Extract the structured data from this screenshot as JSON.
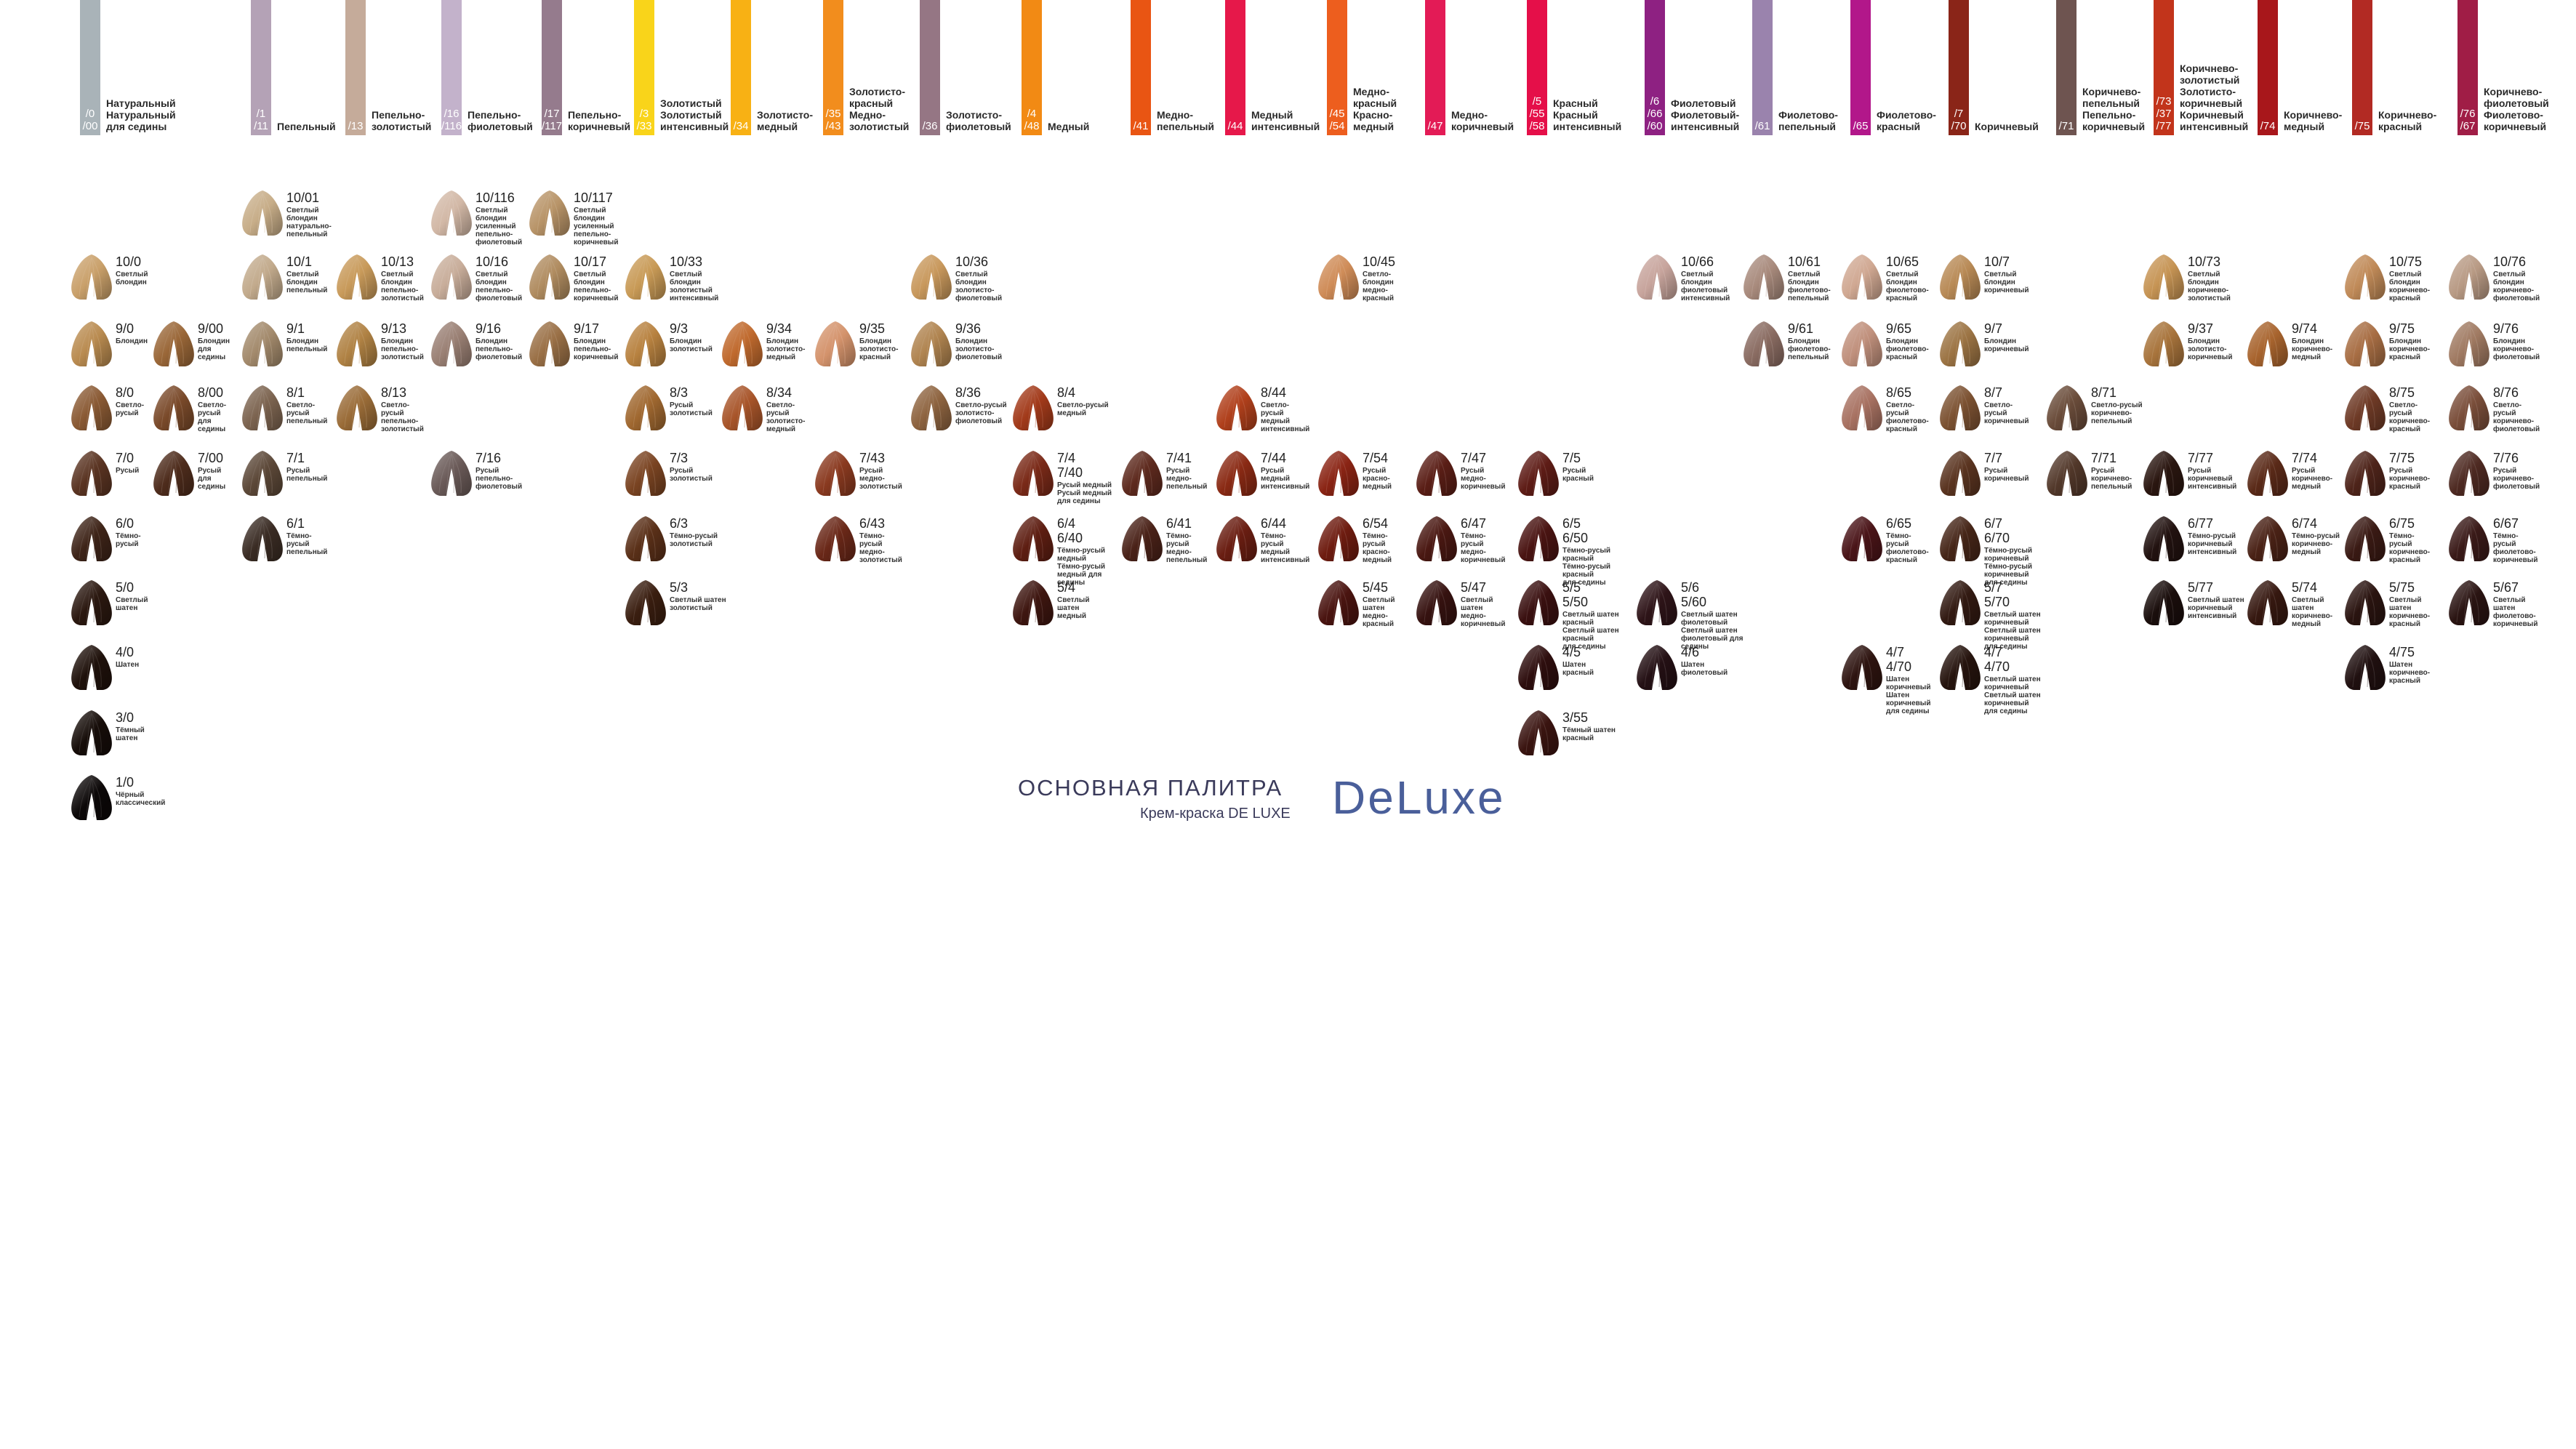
{
  "brand": {
    "title": "ОСНОВНАЯ ПАЛИТРА",
    "subtitle": "Крем-краска DE LUXE",
    "logo": "DeLuxe"
  },
  "columns": [
    {
      "codes": "/0\n/00",
      "name": "Натуральный\nНатуральный для седины",
      "color": "#a9b3b8"
    },
    {
      "codes": "/1\n/11",
      "name": "Пепельный",
      "color": "#b4a2b6"
    },
    {
      "codes": "/13",
      "name": "Пепельно-\nзолотистый",
      "color": "#c5ab9a"
    },
    {
      "codes": "/16\n/116",
      "name": "Пепельно-\nфиолетовый",
      "color": "#c3b2cb"
    },
    {
      "codes": "/17\n/117",
      "name": "Пепельно-\nкоричневый",
      "color": "#957b8d"
    },
    {
      "codes": "/3\n/33",
      "name": "Золотистый\nЗолотистый\nинтенсивный",
      "color": "#f9d41a"
    },
    {
      "codes": "/34",
      "name": "Золотисто-\nмедный",
      "color": "#f8b114"
    },
    {
      "codes": "/35\n/43",
      "name": "Золотисто-\nкрасный\nМедно-\nзолотистый",
      "color": "#f28d1d"
    },
    {
      "codes": "/36",
      "name": "Золотисто-\nфиолетовый",
      "color": "#957684"
    },
    {
      "codes": "/4\n/48",
      "name": "Медный",
      "color": "#f28a14"
    },
    {
      "codes": "/41",
      "name": "Медно-\nпепельный",
      "color": "#e95513"
    },
    {
      "codes": "/44",
      "name": "Медный\nинтенсивный",
      "color": "#e6184a"
    },
    {
      "codes": "/45\n/54",
      "name": "Медно-\nкрасный\nКрасно-\nмедный",
      "color": "#ed5e1e"
    },
    {
      "codes": "/47",
      "name": "Медно-\nкоричневый",
      "color": "#e31b56"
    },
    {
      "codes": "/5\n/55\n/58",
      "name": "Красный\nКрасный\nинтенсивный",
      "color": "#e50f49"
    },
    {
      "codes": "/6\n/66\n/60",
      "name": "Фиолетовый\nФиолетовый-\nинтенсивный",
      "color": "#8e2182"
    },
    {
      "codes": "/61",
      "name": "Фиолетово-\nпепельный",
      "color": "#9a83ad"
    },
    {
      "codes": "/65",
      "name": "Фиолетово-\nкрасный",
      "color": "#b2178a"
    },
    {
      "codes": "/7\n/70",
      "name": "Коричневый",
      "color": "#8a2518"
    },
    {
      "codes": "/71",
      "name": "Коричнево-\nпепельный\nПепельно-\nкоричневый",
      "color": "#6e5450"
    },
    {
      "codes": "/73\n/37\n/77",
      "name": "Коричнево-\nзолотистый\nЗолотисто-\nкоричневый\nКоричневый\nинтенсивный",
      "color": "#c2341b"
    },
    {
      "codes": "/74",
      "name": "Коричнево-\nмедный",
      "color": "#a8171b"
    },
    {
      "codes": "/75",
      "name": "Коричнево-\nкрасный",
      "color": "#b22a23"
    },
    {
      "codes": "/76\n/67",
      "name": "Коричнево-\nфиолетовый\nФиолетово-\nкоричневый",
      "color": "#a01d46"
    }
  ],
  "swatches": [
    {
      "code": "10/0",
      "desc": "Светлый\nблондин",
      "color": "#c9a06a"
    },
    {
      "code": "9/0",
      "desc": "Блондин",
      "color": "#b98b50"
    },
    {
      "code": "8/0",
      "desc": "Светло-\nрусый",
      "color": "#8a5a34"
    },
    {
      "code": "7/0",
      "desc": "Русый",
      "color": "#5a3422"
    },
    {
      "code": "6/0",
      "desc": "Тёмно-\nрусый",
      "color": "#3e2418"
    },
    {
      "code": "5/0",
      "desc": "Светлый\nшатен",
      "color": "#2b1810"
    },
    {
      "code": "4/0",
      "desc": "Шатен",
      "color": "#1f110b"
    },
    {
      "code": "3/0",
      "desc": "Тёмный\nшатен",
      "color": "#160d09"
    },
    {
      "code": "1/0",
      "desc": "Чёрный\nклассический",
      "color": "#0c0808"
    },
    {
      "code": "9/00",
      "desc": "Блондин\nдля\nседины",
      "color": "#9a6738"
    },
    {
      "code": "8/00",
      "desc": "Светло-\nрусый\nдля\nседины",
      "color": "#7a4a2a"
    },
    {
      "code": "7/00",
      "desc": "Русый\nдля\nседины",
      "color": "#4e2c1c"
    },
    {
      "code": "10/01",
      "desc": "Светлый\nблондин\nнатурально-\nпепельный",
      "color": "#c7ad88"
    },
    {
      "code": "10/1",
      "desc": "Светлый\nблондин\nпепельный",
      "color": "#c2aa8c"
    },
    {
      "code": "9/1",
      "desc": "Блондин\nпепельный",
      "color": "#a38a6c"
    },
    {
      "code": "8/1",
      "desc": "Светло-\nрусый\nпепельный",
      "color": "#7c6450"
    },
    {
      "code": "7/1",
      "desc": "Русый\nпепельный",
      "color": "#5c4838"
    },
    {
      "code": "6/1",
      "desc": "Тёмно-\nрусый\nпепельный",
      "color": "#3a2c24"
    },
    {
      "code": "10/13",
      "desc": "Светлый\nблондин\nпепельно-\nзолотистый",
      "color": "#c89a5a"
    },
    {
      "code": "9/13",
      "desc": "Блондин\nпепельно-\nзолотистый",
      "color": "#b08244"
    },
    {
      "code": "8/13",
      "desc": "Светло-\nрусый\nпепельно-\nзолотистый",
      "color": "#9a6c38"
    },
    {
      "code": "10/116",
      "desc": "Светлый\nблондин\nусиленный\nпепельно-\nфиолетовый",
      "color": "#d2b8a6"
    },
    {
      "code": "10/16",
      "desc": "Светлый\nблондин\nпепельно-\nфиолетовый",
      "color": "#c8ad9a"
    },
    {
      "code": "9/16",
      "desc": "Блондин\nпепельно-\nфиолетовый",
      "color": "#9a8074"
    },
    {
      "code": "7/16",
      "desc": "Русый\nпепельно-\nфиолетовый",
      "color": "#6a5a58"
    },
    {
      "code": "10/117",
      "desc": "Светлый\nблондин\nусиленный\nпепельно-\nкоричневый",
      "color": "#b89468"
    },
    {
      "code": "10/17",
      "desc": "Светлый\nблондин\nпепельно-\nкоричневый",
      "color": "#b08c60"
    },
    {
      "code": "9/17",
      "desc": "Блондин\nпепельно-\nкоричневый",
      "color": "#9a7046"
    },
    {
      "code": "10/33",
      "desc": "Светлый\nблондин\nзолотистый\nинтенсивный",
      "color": "#c89a56"
    },
    {
      "code": "9/3",
      "desc": "Блондин\nзолотистый",
      "color": "#b88240"
    },
    {
      "code": "8/3",
      "desc": "Русый\nзолотистый",
      "color": "#a06830"
    },
    {
      "code": "7/3",
      "desc": "Русый\nзолотистый",
      "color": "#7a4422"
    },
    {
      "code": "6/3",
      "desc": "Тёмно-русый\nзолотистый",
      "color": "#5a3018"
    },
    {
      "code": "5/3",
      "desc": "Светлый шатен\nзолотистый",
      "color": "#3a1e10"
    },
    {
      "code": "9/34",
      "desc": "Блондин\nзолотисто-\nмедный",
      "color": "#c06a2e"
    },
    {
      "code": "8/34",
      "desc": "Светло-\nрусый\nзолотисто-\nмедный",
      "color": "#a8552a"
    },
    {
      "code": "9/35",
      "desc": "Блондин\nзолотисто-\nкрасный",
      "color": "#d4936c"
    },
    {
      "code": "7/43",
      "desc": "Русый\nмедно-\nзолотистый",
      "color": "#8a3a20"
    },
    {
      "code": "6/43",
      "desc": "Тёмно-\nрусый\nмедно-\nзолотистый",
      "color": "#6a2818"
    },
    {
      "code": "10/36",
      "desc": "Светлый\nблондин\nзолотисто-\nфиолетовый",
      "color": "#c8985c"
    },
    {
      "code": "9/36",
      "desc": "Блондин\nзолотисто-\nфиолетовый",
      "color": "#b08450"
    },
    {
      "code": "8/36",
      "desc": "Светло-русый\nзолотисто-\nфиолетовый",
      "color": "#8e6440"
    },
    {
      "code": "8/4",
      "desc": "Светло-русый\nмедный",
      "color": "#a23a1a"
    },
    {
      "code": "7/4\n7/40",
      "desc": "Русый медный\nРусый медный для седины",
      "color": "#7a2a18"
    },
    {
      "code": "6/4\n6/40",
      "desc": "Тёмно-русый\nмедный\nТёмно-русый медный для седины",
      "color": "#5e1e12"
    },
    {
      "code": "5/4",
      "desc": "Светлый\nшатен\nмедный",
      "color": "#3e1610"
    },
    {
      "code": "7/41",
      "desc": "Русый\nмедно-\nпепельный",
      "color": "#5e2a1e"
    },
    {
      "code": "6/41",
      "desc": "Тёмно-\nрусый\nмедно-\nпепельный",
      "color": "#4a2218"
    },
    {
      "code": "8/44",
      "desc": "Светло-\nрусый\nмедный\nинтенсивный",
      "color": "#b0401c"
    },
    {
      "code": "7/44",
      "desc": "Русый\nмедный\nинтенсивный",
      "color": "#8a2a14"
    },
    {
      "code": "6/44",
      "desc": "Тёмно-\nрусый\nмедный\nинтенсивный",
      "color": "#6a1e12"
    },
    {
      "code": "10/45",
      "desc": "Светло-\nблондин\nмедно-\nкрасный",
      "color": "#cf8c58"
    },
    {
      "code": "7/54",
      "desc": "Русый\nкрасно-\nмедный",
      "color": "#8a2414"
    },
    {
      "code": "6/54",
      "desc": "Тёмно-\nрусый\nкрасно-\nмедный",
      "color": "#6e1c10"
    },
    {
      "code": "5/45",
      "desc": "Светлый\nшатен\nмедно-\nкрасный",
      "color": "#4a1410"
    },
    {
      "code": "7/47",
      "desc": "Русый\nмедно-\nкоричневый",
      "color": "#5a1e16"
    },
    {
      "code": "6/47",
      "desc": "Тёмно-\nрусый\nмедно-\nкоричневый",
      "color": "#4a1812"
    },
    {
      "code": "5/47",
      "desc": "Светлый\nшатен\nмедно-\nкоричневый",
      "color": "#361210"
    },
    {
      "code": "7/5",
      "desc": "Русый\nкрасный",
      "color": "#5e1c16"
    },
    {
      "code": "6/5\n6/50",
      "desc": "Тёмно-русый\nкрасный\nТёмно-русый\nкрасный\nдля седины",
      "color": "#4a1412"
    },
    {
      "code": "5/5\n5/50",
      "desc": "Светлый шатен\nкрасный\nСветлый шатен\nкрасный\nдля седины",
      "color": "#3a1010"
    },
    {
      "code": "4/5",
      "desc": "Шатен\nкрасный",
      "color": "#2e0e0e"
    },
    {
      "code": "3/55",
      "desc": "Тёмный шатен\nкрасный",
      "color": "#3a1410"
    },
    {
      "code": "10/66",
      "desc": "Светлый\nблондин\nфиолетовый\nинтенсивный",
      "color": "#c7a49c"
    },
    {
      "code": "5/6\n5/60",
      "desc": "Светлый шатен\nфиолетовый\nСветлый шатен\nфиолетовый для седины",
      "color": "#2e1418"
    },
    {
      "code": "4/6",
      "desc": "Шатен\nфиолетовый",
      "color": "#241014"
    },
    {
      "code": "10/61",
      "desc": "Светлый\nблондин\nфиолетово-\nпепельный",
      "color": "#a88a7c"
    },
    {
      "code": "9/61",
      "desc": "Блондин\nфиолетово-\nпепельный",
      "color": "#8a6c62"
    },
    {
      "code": "10/65",
      "desc": "Светлый\nблондин\nфиолетово-\nкрасный",
      "color": "#d0a892"
    },
    {
      "code": "9/65",
      "desc": "Блондин\nфиолетово-\nкрасный",
      "color": "#c0907c"
    },
    {
      "code": "8/65",
      "desc": "Светло-\nрусый\nфиолетово-\nкрасный",
      "color": "#a87262"
    },
    {
      "code": "6/65",
      "desc": "Тёмно-\nрусый\nфиолетово-\nкрасный",
      "color": "#4a1418"
    },
    {
      "code": "4/7\n4/70",
      "desc": "Шатен\nкоричневый\nШатен\nкоричневый\nдля седины",
      "color": "#2e1410"
    },
    {
      "code": "10/7",
      "desc": "Светлый\nблондин\nкоричневый",
      "color": "#b88a56"
    },
    {
      "code": "9/7",
      "desc": "Блондин\nкоричневый",
      "color": "#9c7444"
    },
    {
      "code": "8/7",
      "desc": "Светло-\nрусый\nкоричневый",
      "color": "#7c5232"
    },
    {
      "code": "7/7",
      "desc": "Русый\nкоричневый",
      "color": "#5a3420"
    },
    {
      "code": "6/7\n6/70",
      "desc": "Тёмно-русый\nкоричневый\nТёмно-русый\nкоричневый\nдля седины",
      "color": "#462618"
    },
    {
      "code": "5/7\n5/70",
      "desc": "Светлый шатен\nкоричневый\nСветлый шатен\nкоричневый\nдля седины",
      "color": "#321a12"
    },
    {
      "code": "4/7\n4/70",
      "desc": "Светлый шатен\nкоричневый\nСветлый шатен\nкоричневый\nдля седины",
      "color": "#26140e"
    },
    {
      "code": "8/71",
      "desc": "Светло-русый\nкоричнево-\nпепельный",
      "color": "#6a4c3a"
    },
    {
      "code": "7/71",
      "desc": "Русый\nкоричнево-\nпепельный",
      "color": "#52382a"
    },
    {
      "code": "10/73",
      "desc": "Светлый\nблондин\nкоричнево-\nзолотистый",
      "color": "#c69454"
    },
    {
      "code": "9/37",
      "desc": "Блондин\nзолотисто-\nкоричневый",
      "color": "#a8743c"
    },
    {
      "code": "7/77",
      "desc": "Русый\nкоричневый\nинтенсивный",
      "color": "#2a1610"
    },
    {
      "code": "6/77",
      "desc": "Тёмно-русый\nкоричневый\nинтенсивный",
      "color": "#221210"
    },
    {
      "code": "5/77",
      "desc": "Светлый шатен\nкоричневый\nинтенсивный",
      "color": "#1a0e0c"
    },
    {
      "code": "9/74",
      "desc": "Блондин\nкоричнево-\nмедный",
      "color": "#a8642e"
    },
    {
      "code": "7/74",
      "desc": "Русый\nкоричнево-\nмедный",
      "color": "#5a2a18"
    },
    {
      "code": "6/74",
      "desc": "Тёмно-русый\nкоричнево-\nмедный",
      "color": "#4a2216"
    },
    {
      "code": "5/74",
      "desc": "Светлый\nшатен\nкоричнево-\nмедный",
      "color": "#361810"
    },
    {
      "code": "10/75",
      "desc": "Светлый\nблондин\nкоричнево-\nкрасный",
      "color": "#c08a58"
    },
    {
      "code": "9/75",
      "desc": "Блондин\nкоричнево-\nкрасный",
      "color": "#a86e44"
    },
    {
      "code": "8/75",
      "desc": "Светло-\nрусый\nкоричнево-\nкрасный",
      "color": "#6e3a26"
    },
    {
      "code": "7/75",
      "desc": "Русый\nкоричнево-\nкрасный",
      "color": "#4e241a"
    },
    {
      "code": "6/75",
      "desc": "Тёмно-\nрусый\nкоричнево-\nкрасный",
      "color": "#3a1a14"
    },
    {
      "code": "5/75",
      "desc": "Светлый\nшатен\nкоричнево-\nкрасный",
      "color": "#2a1410"
    },
    {
      "code": "4/75",
      "desc": "Шатен\nкоричнево-\nкрасный",
      "color": "#201010"
    },
    {
      "code": "10/76",
      "desc": "Светлый\nблондин\nкоричнево-\nфиолетовый",
      "color": "#b89a84"
    },
    {
      "code": "9/76",
      "desc": "Блондин\nкоричнево-\nфиолетовый",
      "color": "#a07a62"
    },
    {
      "code": "8/76",
      "desc": "Светло-\nрусый\nкоричнево-\nфиолетовый",
      "color": "#7a4e3a"
    },
    {
      "code": "7/76",
      "desc": "Русый\nкоричнево-\nфиолетовый",
      "color": "#4e2a22"
    },
    {
      "code": "6/67",
      "desc": "Тёмно-\nрусый\nфиолетово-\nкоричневый",
      "color": "#3a1a18"
    },
    {
      "code": "5/67",
      "desc": "Светлый\nшатен\nфиолетово-\nкоричневый",
      "color": "#2a1412"
    }
  ]
}
